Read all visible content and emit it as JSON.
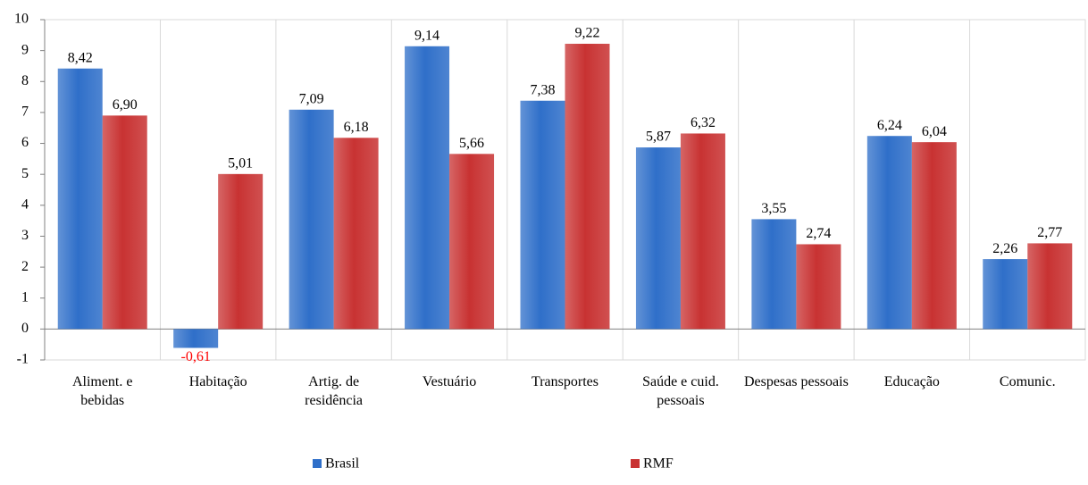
{
  "chart_data": {
    "type": "bar",
    "categories": [
      "Aliment. e bebidas",
      "Habitação",
      "Artig. de residência",
      "Vestuário",
      "Transportes",
      "Saúde e cuid. pessoais",
      "Despesas pessoais",
      "Educação",
      "Comunic."
    ],
    "series": [
      {
        "name": "Brasil",
        "color": "#2f6fc9",
        "values": [
          8.42,
          -0.61,
          7.09,
          9.14,
          7.38,
          5.87,
          3.55,
          6.24,
          2.26
        ],
        "value_labels": [
          "8,42",
          "-0,61",
          "7,09",
          "9,14",
          "7,38",
          "5,87",
          "3,55",
          "6,24",
          "2,26"
        ]
      },
      {
        "name": "RMF",
        "color": "#c83232",
        "values": [
          6.9,
          5.01,
          6.18,
          5.66,
          9.22,
          6.32,
          2.74,
          6.04,
          2.77
        ],
        "value_labels": [
          "6,90",
          "5,01",
          "6,18",
          "5,66",
          "9,22",
          "6,32",
          "2,74",
          "6,04",
          "2,77"
        ]
      }
    ],
    "negative_label_color": "#ff0000",
    "ylim": [
      -1,
      10
    ],
    "yticks": [
      -1,
      0,
      1,
      2,
      3,
      4,
      5,
      6,
      7,
      8,
      9,
      10
    ],
    "legend": "bottom"
  }
}
